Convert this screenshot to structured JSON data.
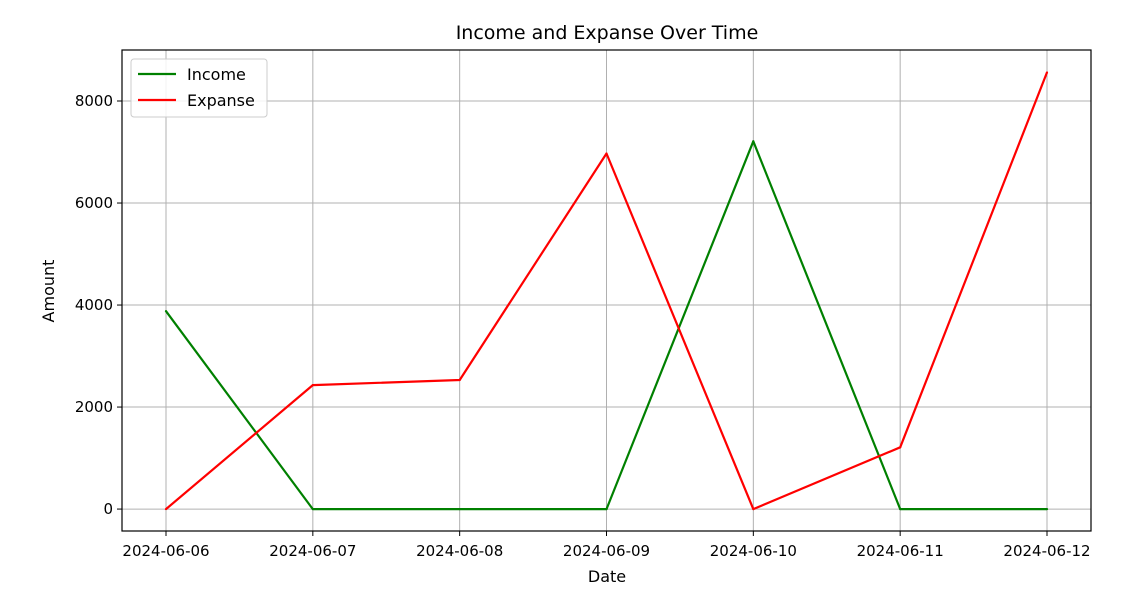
{
  "chart_data": {
    "type": "line",
    "title": "Income and Expanse Over Time",
    "xlabel": "Date",
    "ylabel": "Amount",
    "x": [
      "2024-06-06",
      "2024-06-07",
      "2024-06-08",
      "2024-06-09",
      "2024-06-10",
      "2024-06-11",
      "2024-06-12"
    ],
    "series": [
      {
        "name": "Income",
        "color": "#008000",
        "values": [
          3880,
          0,
          0,
          0,
          7210,
          0,
          0
        ]
      },
      {
        "name": "Expanse",
        "color": "#ff0000",
        "values": [
          0,
          2430,
          2530,
          6970,
          0,
          1210,
          8560
        ]
      }
    ],
    "yticks": [
      0,
      2000,
      4000,
      6000,
      8000
    ],
    "ylim": [
      -430,
      9000
    ],
    "grid": true,
    "legend_position": "top-left"
  }
}
